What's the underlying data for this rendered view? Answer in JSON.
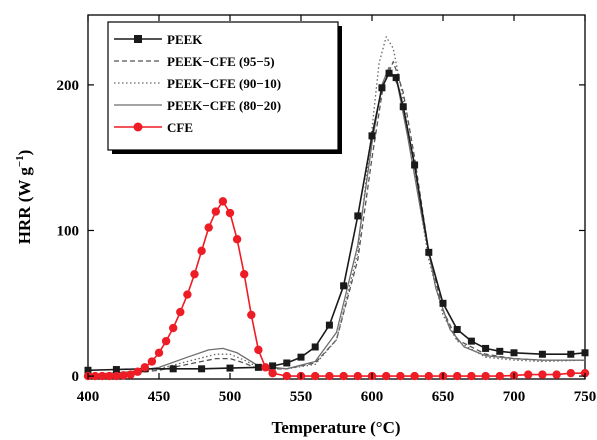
{
  "chart_data": {
    "type": "line",
    "xlabel": "Temperature (°C)",
    "ylabel_main": "HRR (W g",
    "ylabel_sup": "−1",
    "ylabel_tail": ")",
    "xlim": [
      400,
      750
    ],
    "ylim": [
      -2,
      248
    ],
    "x_ticks": [
      400,
      450,
      500,
      550,
      600,
      650,
      700,
      750
    ],
    "y_ticks": [
      0,
      100,
      200
    ],
    "legend_position": "top-left",
    "series": [
      {
        "name": "PEEK",
        "color": "#1a1a1a",
        "dash": "solid",
        "marker": "square",
        "points": [
          [
            400,
            4
          ],
          [
            420,
            4.5
          ],
          [
            440,
            5
          ],
          [
            460,
            5
          ],
          [
            480,
            5
          ],
          [
            500,
            5.5
          ],
          [
            520,
            6
          ],
          [
            530,
            7
          ],
          [
            540,
            9
          ],
          [
            550,
            13
          ],
          [
            560,
            20
          ],
          [
            570,
            35
          ],
          [
            580,
            62
          ],
          [
            590,
            110
          ],
          [
            600,
            165
          ],
          [
            607,
            198
          ],
          [
            612,
            208
          ],
          [
            617,
            205
          ],
          [
            622,
            185
          ],
          [
            630,
            145
          ],
          [
            640,
            85
          ],
          [
            650,
            50
          ],
          [
            660,
            32
          ],
          [
            670,
            24
          ],
          [
            680,
            19
          ],
          [
            690,
            17
          ],
          [
            700,
            16
          ],
          [
            720,
            15
          ],
          [
            740,
            15
          ],
          [
            750,
            16
          ]
        ]
      },
      {
        "name": "PEEK−CFE (95−5)",
        "color": "#555555",
        "dash": "5,3",
        "marker": "none",
        "points": [
          [
            400,
            1
          ],
          [
            430,
            2
          ],
          [
            450,
            4
          ],
          [
            470,
            8
          ],
          [
            490,
            12
          ],
          [
            500,
            12
          ],
          [
            510,
            9
          ],
          [
            520,
            5
          ],
          [
            540,
            5
          ],
          [
            560,
            9
          ],
          [
            575,
            25
          ],
          [
            590,
            80
          ],
          [
            600,
            150
          ],
          [
            608,
            200
          ],
          [
            615,
            216
          ],
          [
            622,
            195
          ],
          [
            630,
            150
          ],
          [
            640,
            85
          ],
          [
            650,
            45
          ],
          [
            660,
            25
          ],
          [
            680,
            15
          ],
          [
            700,
            12
          ],
          [
            720,
            11
          ],
          [
            750,
            11
          ]
        ]
      },
      {
        "name": "PEEK−CFE (90−10)",
        "color": "#666666",
        "dash": "1.5,2.5",
        "marker": "none",
        "points": [
          [
            400,
            1
          ],
          [
            430,
            2
          ],
          [
            450,
            5
          ],
          [
            470,
            10
          ],
          [
            490,
            15
          ],
          [
            500,
            15
          ],
          [
            510,
            11
          ],
          [
            520,
            6
          ],
          [
            540,
            5
          ],
          [
            560,
            8
          ],
          [
            575,
            25
          ],
          [
            590,
            85
          ],
          [
            600,
            170
          ],
          [
            605,
            215
          ],
          [
            610,
            233
          ],
          [
            615,
            225
          ],
          [
            622,
            190
          ],
          [
            630,
            140
          ],
          [
            640,
            80
          ],
          [
            650,
            42
          ],
          [
            660,
            24
          ],
          [
            680,
            13
          ],
          [
            700,
            11
          ],
          [
            720,
            10
          ],
          [
            750,
            11
          ]
        ]
      },
      {
        "name": "PEEK−CFE (80−20)",
        "color": "#6e6e6e",
        "dash": "solid",
        "marker": "none",
        "points": [
          [
            400,
            1
          ],
          [
            430,
            3
          ],
          [
            450,
            6
          ],
          [
            470,
            13
          ],
          [
            485,
            18
          ],
          [
            495,
            19
          ],
          [
            505,
            16
          ],
          [
            520,
            7
          ],
          [
            540,
            5
          ],
          [
            560,
            10
          ],
          [
            575,
            30
          ],
          [
            590,
            90
          ],
          [
            600,
            160
          ],
          [
            607,
            200
          ],
          [
            612,
            212
          ],
          [
            618,
            200
          ],
          [
            625,
            165
          ],
          [
            635,
            110
          ],
          [
            645,
            60
          ],
          [
            655,
            32
          ],
          [
            665,
            20
          ],
          [
            680,
            14
          ],
          [
            700,
            12
          ],
          [
            720,
            11
          ],
          [
            750,
            11
          ]
        ]
      },
      {
        "name": "CFE",
        "color": "#ee1c24",
        "dash": "solid",
        "marker": "circle",
        "points": [
          [
            400,
            0
          ],
          [
            405,
            0
          ],
          [
            410,
            0
          ],
          [
            415,
            0
          ],
          [
            420,
            0
          ],
          [
            425,
            0.5
          ],
          [
            430,
            1
          ],
          [
            435,
            3
          ],
          [
            440,
            6
          ],
          [
            445,
            10
          ],
          [
            450,
            16
          ],
          [
            455,
            24
          ],
          [
            460,
            33
          ],
          [
            465,
            44
          ],
          [
            470,
            56
          ],
          [
            475,
            70
          ],
          [
            480,
            86
          ],
          [
            485,
            102
          ],
          [
            490,
            113
          ],
          [
            495,
            120
          ],
          [
            500,
            112
          ],
          [
            505,
            94
          ],
          [
            510,
            70
          ],
          [
            515,
            42
          ],
          [
            520,
            18
          ],
          [
            525,
            6
          ],
          [
            530,
            2
          ],
          [
            540,
            0
          ],
          [
            550,
            0
          ],
          [
            560,
            0
          ],
          [
            570,
            0
          ],
          [
            580,
            0
          ],
          [
            590,
            0
          ],
          [
            600,
            0
          ],
          [
            610,
            0
          ],
          [
            620,
            0
          ],
          [
            630,
            0
          ],
          [
            640,
            0
          ],
          [
            650,
            0
          ],
          [
            660,
            0
          ],
          [
            670,
            0
          ],
          [
            680,
            0
          ],
          [
            690,
            0
          ],
          [
            700,
            0.5
          ],
          [
            710,
            1
          ],
          [
            720,
            1
          ],
          [
            730,
            1
          ],
          [
            740,
            2
          ],
          [
            750,
            2
          ]
        ]
      }
    ]
  }
}
